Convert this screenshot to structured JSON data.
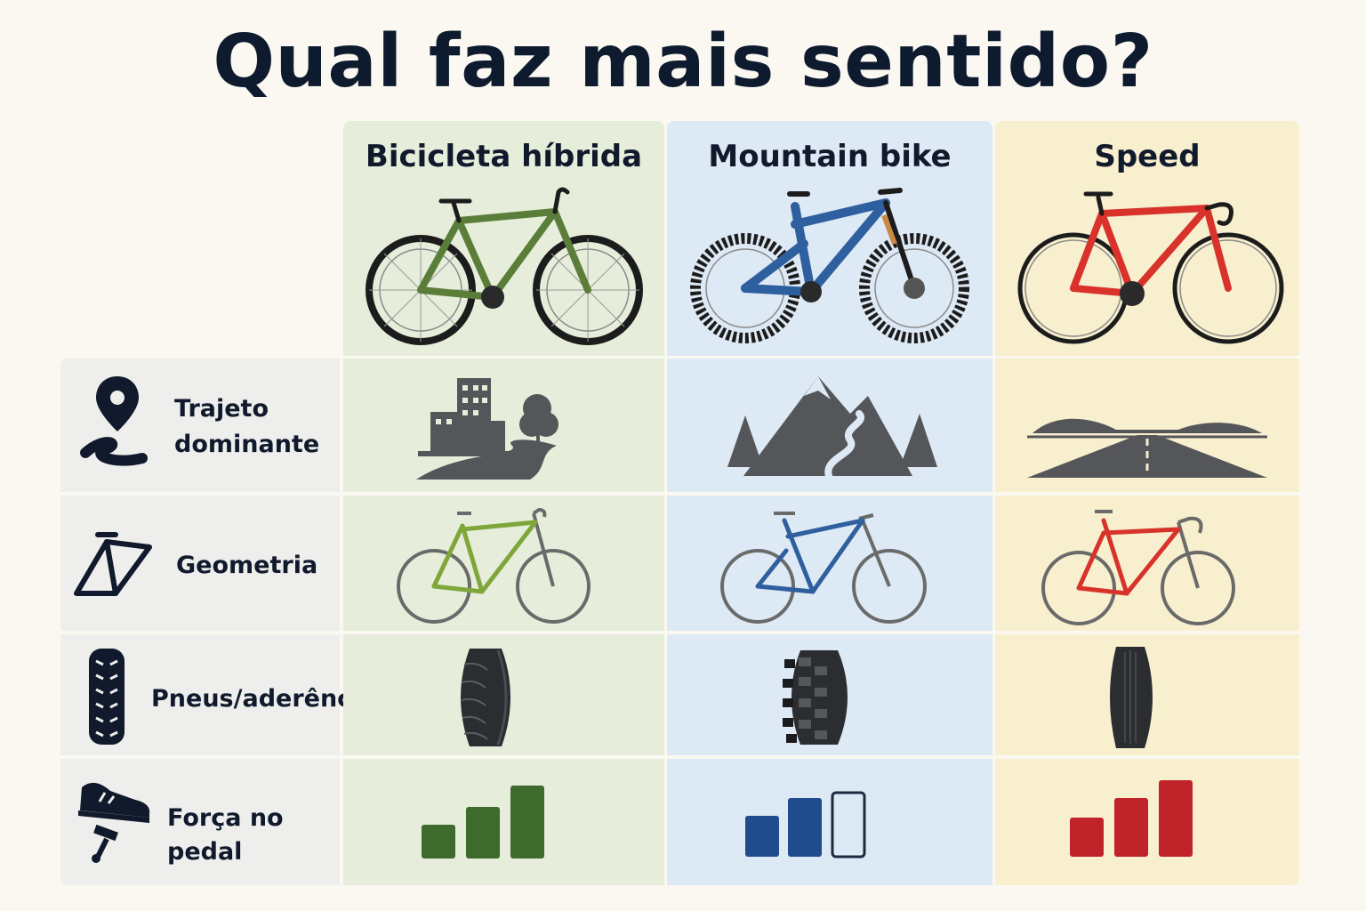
{
  "title": "Qual faz mais sentido?",
  "columns": [
    {
      "label": "Bicicleta híbrida",
      "color": "#5a7d39"
    },
    {
      "label": "Mountain bike",
      "color": "#2e5f9e"
    },
    {
      "label": "Speed",
      "color": "#d8322b"
    }
  ],
  "rows": [
    {
      "label_line1": "Trajeto",
      "label_line2": "dominante",
      "icon": "map-pin-path-icon"
    },
    {
      "label": "Geometria",
      "icon": "bike-frame-icon"
    },
    {
      "label": "Pneus/aderência",
      "icon": "tire-tread-icon"
    },
    {
      "label": "Força no pedal",
      "icon": "shoe-pedal-icon"
    }
  ],
  "terrain_icons": [
    "city-park-path-icon",
    "mountain-trail-icon",
    "open-road-icon"
  ],
  "effort_levels": [
    {
      "bars_filled": 3,
      "bars_total": 3,
      "color": "#3f6a2e"
    },
    {
      "bars_filled": 2,
      "bars_total": 3,
      "color": "#1f4c8c"
    },
    {
      "bars_filled": 3,
      "bars_total": 3,
      "color": "#c1232a"
    }
  ]
}
